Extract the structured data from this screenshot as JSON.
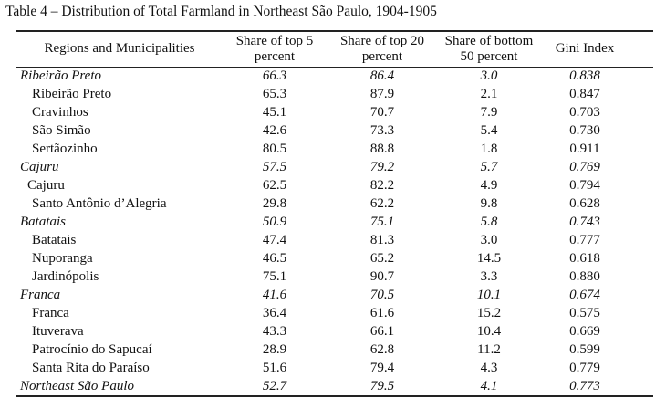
{
  "caption": "Table 4 – Distribution of Total Farmland in Northeast São Paulo, 1904-1905",
  "headers": {
    "region": "Regions and Municipalities",
    "top5": [
      "Share of top 5",
      "percent"
    ],
    "top20": [
      "Share of top 20",
      "percent"
    ],
    "bottom50": [
      "Share of bottom",
      "50 percent"
    ],
    "gini": "Gini Index"
  },
  "rows": [
    {
      "name": "Ribeirão Preto",
      "group": true,
      "top5": "66.3",
      "top20": "86.4",
      "bottom50": "3.0",
      "gini": "0.838"
    },
    {
      "name": "Ribeirão Preto",
      "group": false,
      "top5": "65.3",
      "top20": "87.9",
      "bottom50": "2.1",
      "gini": "0.847"
    },
    {
      "name": "Cravinhos",
      "group": false,
      "top5": "45.1",
      "top20": "70.7",
      "bottom50": "7.9",
      "gini": "0.703"
    },
    {
      "name": "São Simão",
      "group": false,
      "top5": "42.6",
      "top20": "73.3",
      "bottom50": "5.4",
      "gini": "0.730"
    },
    {
      "name": "Sertãozinho",
      "group": false,
      "top5": "80.5",
      "top20": "88.8",
      "bottom50": "1.8",
      "gini": "0.911"
    },
    {
      "name": "Cajuru",
      "group": true,
      "top5": "57.5",
      "top20": "79.2",
      "bottom50": "5.7",
      "gini": "0.769"
    },
    {
      "name": "Cajuru",
      "group": false,
      "tight": true,
      "top5": "62.5",
      "top20": "82.2",
      "bottom50": "4.9",
      "gini": "0.794"
    },
    {
      "name": "Santo Antônio d’Alegria",
      "group": false,
      "top5": "29.8",
      "top20": "62.2",
      "bottom50": "9.8",
      "gini": "0.628"
    },
    {
      "name": "Batatais",
      "group": true,
      "top5": "50.9",
      "top20": "75.1",
      "bottom50": "5.8",
      "gini": "0.743"
    },
    {
      "name": "Batatais",
      "group": false,
      "top5": "47.4",
      "top20": "81.3",
      "bottom50": "3.0",
      "gini": "0.777"
    },
    {
      "name": "Nuporanga",
      "group": false,
      "top5": "46.5",
      "top20": "65.2",
      "bottom50": "14.5",
      "gini": "0.618"
    },
    {
      "name": "Jardinópolis",
      "group": false,
      "top5": "75.1",
      "top20": "90.7",
      "bottom50": "3.3",
      "gini": "0.880"
    },
    {
      "name": "Franca",
      "group": true,
      "top5": "41.6",
      "top20": "70.5",
      "bottom50": "10.1",
      "gini": "0.674"
    },
    {
      "name": "Franca",
      "group": false,
      "top5": "36.4",
      "top20": "61.6",
      "bottom50": "15.2",
      "gini": "0.575"
    },
    {
      "name": "Ituverava",
      "group": false,
      "top5": "43.3",
      "top20": "66.1",
      "bottom50": "10.4",
      "gini": "0.669"
    },
    {
      "name": "Patrocínio do Sapucaí",
      "group": false,
      "top5": "28.9",
      "top20": "62.8",
      "bottom50": "11.2",
      "gini": "0.599"
    },
    {
      "name": "Santa Rita do Paraíso",
      "group": false,
      "top5": "51.6",
      "top20": "79.4",
      "bottom50": "4.3",
      "gini": "0.779"
    },
    {
      "name": "Northeast São Paulo",
      "group": true,
      "top5": "52.7",
      "top20": "79.5",
      "bottom50": "4.1",
      "gini": "0.773"
    }
  ]
}
